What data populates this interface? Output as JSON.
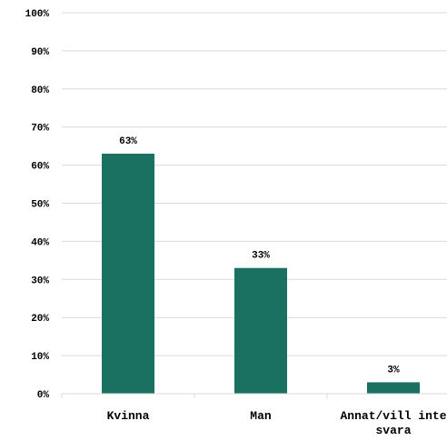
{
  "chart_data": {
    "type": "bar",
    "categories": [
      "Kvinna",
      "Man",
      "Annat/vill inte svara"
    ],
    "category_lines": [
      [
        "Kvinna"
      ],
      [
        "Man"
      ],
      [
        "Annat/vill inte",
        "svara"
      ]
    ],
    "values": [
      63,
      33,
      3
    ],
    "data_labels": [
      "63%",
      "33%",
      "3%"
    ],
    "ylim": [
      0,
      100
    ],
    "y_ticks": [
      0,
      10,
      20,
      30,
      40,
      50,
      60,
      70,
      80,
      90,
      100
    ],
    "y_tick_labels": [
      "0%",
      "10%",
      "20%",
      "30%",
      "40%",
      "50%",
      "60%",
      "70%",
      "80%",
      "90%",
      "100%"
    ],
    "grid": true,
    "bar_color": "#1a7061",
    "grid_color": "#d9d9d9"
  }
}
